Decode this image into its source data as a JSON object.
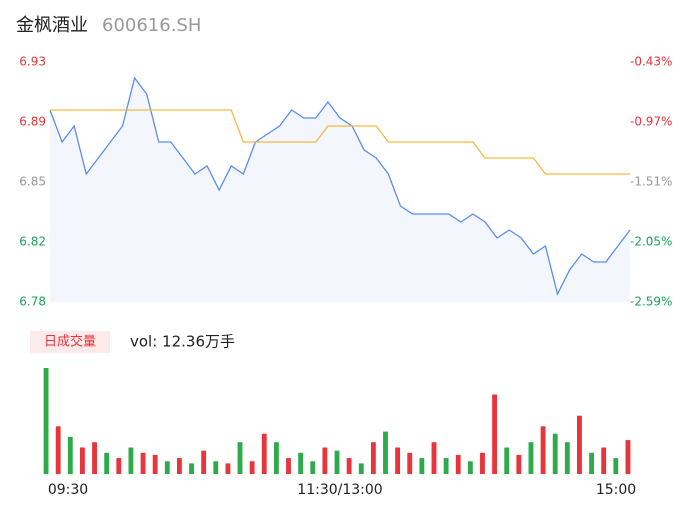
{
  "chart_data": {
    "type": "line",
    "title": "金枫酒业",
    "subtitle": "600616.SH",
    "x": [
      0,
      5,
      10,
      15,
      20,
      25,
      30,
      35,
      40,
      45,
      50,
      55,
      60,
      65,
      70,
      75,
      80,
      85,
      90,
      95,
      100,
      105,
      110,
      115,
      120,
      125,
      130,
      135,
      140,
      145,
      150,
      155,
      160,
      165,
      170,
      175,
      180,
      185,
      190,
      195,
      200,
      205,
      210,
      215,
      220,
      225,
      230,
      235,
      240
    ],
    "xlim": [
      0,
      240
    ],
    "xticks": [
      {
        "value": 0,
        "label": "09:30"
      },
      {
        "value": 120,
        "label": "11:30/13:00"
      },
      {
        "value": 240,
        "label": "15:00"
      }
    ],
    "series": [
      {
        "color": "#5b8def",
        "values": [
          6.9,
          6.88,
          6.89,
          6.86,
          6.87,
          6.88,
          6.89,
          6.92,
          6.91,
          6.88,
          6.88,
          6.87,
          6.86,
          6.865,
          6.85,
          6.865,
          6.86,
          6.88,
          6.885,
          6.89,
          6.9,
          6.895,
          6.895,
          6.905,
          6.895,
          6.89,
          6.875,
          6.87,
          6.86,
          6.84,
          6.835,
          6.835,
          6.835,
          6.835,
          6.83,
          6.835,
          6.83,
          6.82,
          6.825,
          6.82,
          6.81,
          6.815,
          6.785,
          6.8,
          6.81,
          6.805,
          6.805,
          6.815,
          6.825
        ]
      },
      {
        "color": "#f5b942",
        "values": [
          6.9,
          6.9,
          6.9,
          6.9,
          6.9,
          6.9,
          6.9,
          6.9,
          6.9,
          6.9,
          6.9,
          6.9,
          6.9,
          6.9,
          6.9,
          6.9,
          6.88,
          6.88,
          6.88,
          6.88,
          6.88,
          6.88,
          6.88,
          6.89,
          6.89,
          6.89,
          6.89,
          6.89,
          6.88,
          6.88,
          6.88,
          6.88,
          6.88,
          6.88,
          6.88,
          6.88,
          6.87,
          6.87,
          6.87,
          6.87,
          6.87,
          6.86,
          6.86,
          6.86,
          6.86,
          6.86,
          6.86,
          6.86,
          6.86
        ]
      }
    ],
    "ylim": [
      6.78,
      6.93
    ],
    "yticks": [
      {
        "value": 6.93,
        "label": "6.93"
      },
      {
        "value": 6.8925,
        "label": "6.89"
      },
      {
        "value": 6.855,
        "label": "6.85"
      },
      {
        "value": 6.8175,
        "label": "6.82"
      },
      {
        "value": 6.78,
        "label": "6.78"
      }
    ],
    "ytick_colors": [
      "#e8343a",
      "#e8343a",
      "#999999",
      "#1aa35b",
      "#1aa35b"
    ],
    "y2lim": [
      -2.59,
      -0.43
    ],
    "y2ticks": [
      {
        "value": -0.43,
        "label": "-0.43%"
      },
      {
        "value": -0.97,
        "label": "-0.97%"
      },
      {
        "value": -1.51,
        "label": "-1.51%"
      },
      {
        "value": -2.05,
        "label": "-2.05%"
      },
      {
        "value": -2.59,
        "label": "-2.59%"
      }
    ],
    "volume_tab": "日成交量",
    "volume_total": "vol: 12.36万手",
    "volume": {
      "values": [
        100,
        45,
        35,
        25,
        30,
        20,
        15,
        25,
        20,
        18,
        12,
        15,
        10,
        22,
        12,
        10,
        30,
        12,
        38,
        30,
        15,
        20,
        12,
        25,
        22,
        15,
        10,
        30,
        40,
        25,
        20,
        15,
        30,
        15,
        18,
        12,
        20,
        75,
        25,
        18,
        30,
        45,
        38,
        30,
        55,
        20,
        25,
        15,
        32
      ],
      "colors": [
        "#2eaa4a",
        "#e8343a",
        "#2eaa4a",
        "#e8343a",
        "#e8343a",
        "#2eaa4a",
        "#e8343a",
        "#2eaa4a",
        "#e8343a",
        "#e8343a",
        "#2eaa4a",
        "#e8343a",
        "#2eaa4a",
        "#e8343a",
        "#2eaa4a",
        "#e8343a",
        "#2eaa4a",
        "#e8343a",
        "#e8343a",
        "#2eaa4a",
        "#e8343a",
        "#2eaa4a",
        "#2eaa4a",
        "#e8343a",
        "#2eaa4a",
        "#e8343a",
        "#2eaa4a",
        "#e8343a",
        "#2eaa4a",
        "#e8343a",
        "#e8343a",
        "#2eaa4a",
        "#e8343a",
        "#2eaa4a",
        "#e8343a",
        "#2eaa4a",
        "#e8343a",
        "#e8343a",
        "#2eaa4a",
        "#e8343a",
        "#2eaa4a",
        "#e8343a",
        "#2eaa4a",
        "#2eaa4a",
        "#e8343a",
        "#2eaa4a",
        "#e8343a",
        "#2eaa4a",
        "#e8343a"
      ]
    }
  }
}
